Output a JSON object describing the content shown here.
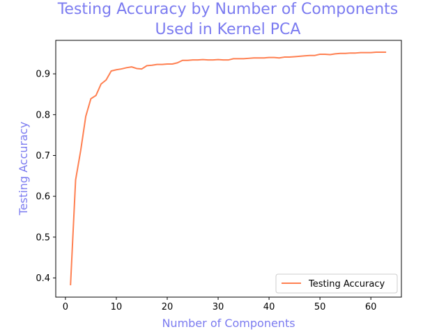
{
  "colors": {
    "title": "#7b7bf0",
    "axis_label": "#7b7bf0",
    "series": "#ff7f50",
    "axes": "#000000",
    "legend_border": "#cccccc"
  },
  "chart_data": {
    "type": "line",
    "title_lines": [
      "Testing Accuracy by Number of Components",
      "Used in Kernel PCA"
    ],
    "xlabel": "Number of Components",
    "ylabel": "Testing Accuracy",
    "xlim": [
      -1.9,
      66.0
    ],
    "ylim": [
      0.353,
      0.982
    ],
    "xticks": [
      0,
      10,
      20,
      30,
      40,
      50,
      60
    ],
    "yticks": [
      0.4,
      0.5,
      0.6,
      0.7,
      0.8,
      0.9
    ],
    "grid": false,
    "legend_position": "lower-right",
    "series": [
      {
        "name": "Testing Accuracy",
        "x": [
          1,
          2,
          3,
          4,
          5,
          6,
          7,
          8,
          9,
          10,
          11,
          12,
          13,
          14,
          15,
          16,
          17,
          18,
          19,
          20,
          21,
          22,
          23,
          24,
          25,
          26,
          27,
          28,
          29,
          30,
          31,
          32,
          33,
          34,
          35,
          36,
          37,
          38,
          39,
          40,
          41,
          42,
          43,
          44,
          45,
          46,
          47,
          48,
          49,
          50,
          51,
          52,
          53,
          54,
          55,
          56,
          57,
          58,
          59,
          60,
          61,
          62,
          63
        ],
        "y": [
          0.382,
          0.64,
          0.712,
          0.796,
          0.839,
          0.847,
          0.875,
          0.885,
          0.907,
          0.91,
          0.912,
          0.915,
          0.917,
          0.913,
          0.912,
          0.92,
          0.921,
          0.923,
          0.923,
          0.924,
          0.924,
          0.927,
          0.933,
          0.933,
          0.934,
          0.934,
          0.935,
          0.934,
          0.934,
          0.935,
          0.934,
          0.934,
          0.937,
          0.937,
          0.937,
          0.938,
          0.939,
          0.939,
          0.939,
          0.94,
          0.94,
          0.939,
          0.941,
          0.941,
          0.942,
          0.943,
          0.944,
          0.945,
          0.945,
          0.948,
          0.948,
          0.947,
          0.949,
          0.95,
          0.95,
          0.951,
          0.951,
          0.952,
          0.952,
          0.952,
          0.953,
          0.953,
          0.953
        ]
      }
    ]
  }
}
